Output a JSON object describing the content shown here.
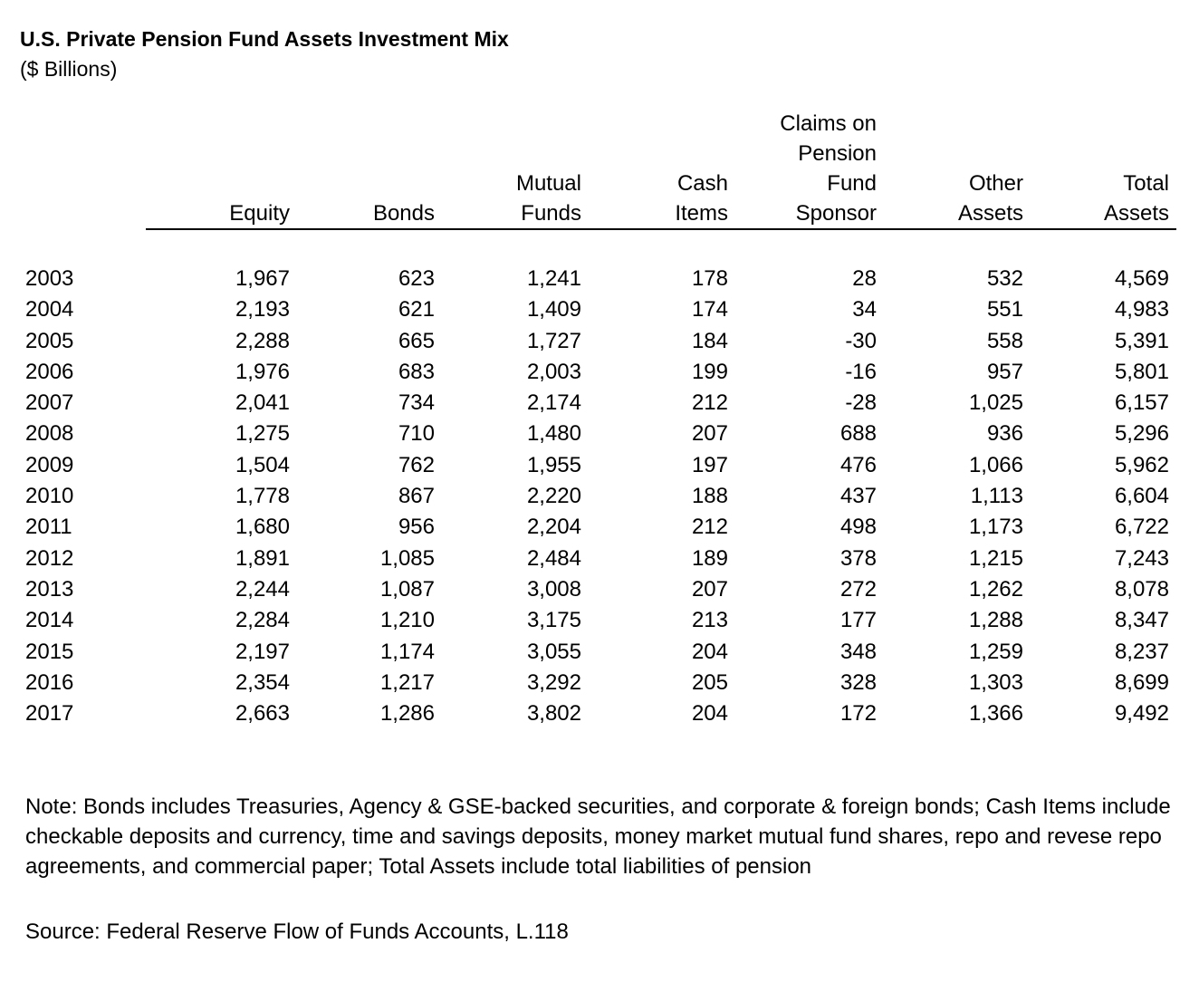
{
  "title": "U.S. Private Pension Fund Assets Investment Mix",
  "subtitle": "($ Billions)",
  "columns": [
    {
      "key": "equity",
      "lines": [
        "Equity"
      ]
    },
    {
      "key": "bonds",
      "lines": [
        "Bonds"
      ]
    },
    {
      "key": "mutual_funds",
      "lines": [
        "Mutual",
        "Funds"
      ]
    },
    {
      "key": "cash_items",
      "lines": [
        "Cash",
        "Items"
      ]
    },
    {
      "key": "claims",
      "lines": [
        "Claims on",
        "Pension",
        "Fund",
        "Sponsor"
      ]
    },
    {
      "key": "other_assets",
      "lines": [
        "Other",
        "Assets"
      ]
    },
    {
      "key": "total_assets",
      "lines": [
        "Total",
        "Assets"
      ]
    }
  ],
  "rows": [
    {
      "year": "2003",
      "values": [
        "1,967",
        "623",
        "1,241",
        "178",
        "28",
        "532",
        "4,569"
      ]
    },
    {
      "year": "2004",
      "values": [
        "2,193",
        "621",
        "1,409",
        "174",
        "34",
        "551",
        "4,983"
      ]
    },
    {
      "year": "2005",
      "values": [
        "2,288",
        "665",
        "1,727",
        "184",
        "-30",
        "558",
        "5,391"
      ]
    },
    {
      "year": "2006",
      "values": [
        "1,976",
        "683",
        "2,003",
        "199",
        "-16",
        "957",
        "5,801"
      ]
    },
    {
      "year": "2007",
      "values": [
        "2,041",
        "734",
        "2,174",
        "212",
        "-28",
        "1,025",
        "6,157"
      ]
    },
    {
      "year": "2008",
      "values": [
        "1,275",
        "710",
        "1,480",
        "207",
        "688",
        "936",
        "5,296"
      ]
    },
    {
      "year": "2009",
      "values": [
        "1,504",
        "762",
        "1,955",
        "197",
        "476",
        "1,066",
        "5,962"
      ]
    },
    {
      "year": "2010",
      "values": [
        "1,778",
        "867",
        "2,220",
        "188",
        "437",
        "1,113",
        "6,604"
      ]
    },
    {
      "year": "2011",
      "values": [
        "1,680",
        "956",
        "2,204",
        "212",
        "498",
        "1,173",
        "6,722"
      ]
    },
    {
      "year": "2012",
      "values": [
        "1,891",
        "1,085",
        "2,484",
        "189",
        "378",
        "1,215",
        "7,243"
      ]
    },
    {
      "year": "2013",
      "values": [
        "2,244",
        "1,087",
        "3,008",
        "207",
        "272",
        "1,262",
        "8,078"
      ]
    },
    {
      "year": "2014",
      "values": [
        "2,284",
        "1,210",
        "3,175",
        "213",
        "177",
        "1,288",
        "8,347"
      ]
    },
    {
      "year": "2015",
      "values": [
        "2,197",
        "1,174",
        "3,055",
        "204",
        "348",
        "1,259",
        "8,237"
      ]
    },
    {
      "year": "2016",
      "values": [
        "2,354",
        "1,217",
        "3,292",
        "205",
        "328",
        "1,303",
        "8,699"
      ]
    },
    {
      "year": "2017",
      "values": [
        "2,663",
        "1,286",
        "3,802",
        "204",
        "172",
        "1,366",
        "9,492"
      ]
    }
  ],
  "note": "Note: Bonds includes Treasuries, Agency & GSE-backed securities, and corporate & foreign bonds; Cash Items include checkable deposits and currency, time and savings deposits, money market mutual fund shares, repo and revese repo agreements, and commercial paper; Total Assets include total liabilities of pension",
  "source": "Source: Federal Reserve Flow of Funds Accounts, L.118"
}
